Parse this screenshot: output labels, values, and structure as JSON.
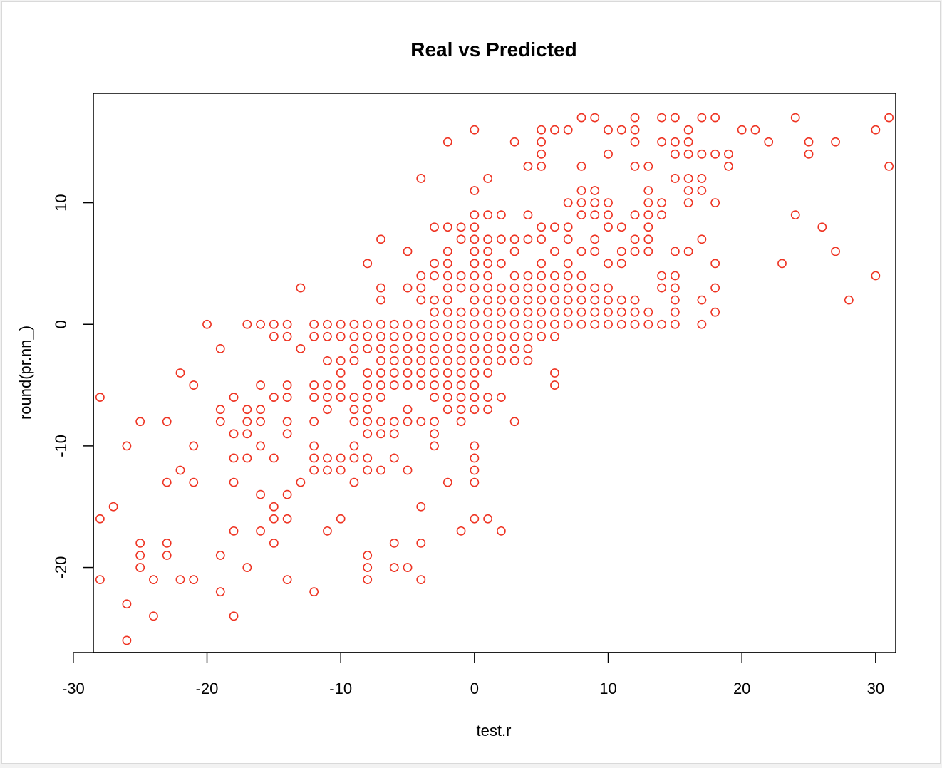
{
  "colors": {
    "point": "#ee3322",
    "axis": "#000000",
    "background": "#ffffff"
  },
  "chart_data": {
    "type": "scatter",
    "title": "Real vs Predicted",
    "xlabel": "test.r",
    "ylabel": "round(pr.nn_)",
    "xlim": [
      -28.5,
      31.5
    ],
    "ylim": [
      -27,
      19
    ],
    "xticks": [
      -30,
      -20,
      -10,
      0,
      10,
      20,
      30
    ],
    "yticks": [
      -20,
      -10,
      0,
      10
    ],
    "x_tick_labels": [
      "-30",
      "-20",
      "-10",
      "0",
      "10",
      "20",
      "30"
    ],
    "y_tick_labels": [
      "-20",
      "-10",
      "0",
      "10"
    ],
    "grid": false,
    "legend": false,
    "marker": "open-circle",
    "points": [
      [
        -28,
        -6
      ],
      [
        -28,
        -16
      ],
      [
        -28,
        -21
      ],
      [
        -27,
        -15
      ],
      [
        -26,
        -10
      ],
      [
        -26,
        -23
      ],
      [
        -26,
        -26
      ],
      [
        -25,
        -8
      ],
      [
        -25,
        -18
      ],
      [
        -25,
        -19
      ],
      [
        -25,
        -20
      ],
      [
        -24,
        -21
      ],
      [
        -24,
        -24
      ],
      [
        -23,
        -8
      ],
      [
        -23,
        -13
      ],
      [
        -23,
        -18
      ],
      [
        -23,
        -19
      ],
      [
        -22,
        -4
      ],
      [
        -22,
        -12
      ],
      [
        -22,
        -21
      ],
      [
        -21,
        -5
      ],
      [
        -21,
        -10
      ],
      [
        -21,
        -13
      ],
      [
        -21,
        -21
      ],
      [
        -20,
        0
      ],
      [
        -19,
        -2
      ],
      [
        -19,
        -7
      ],
      [
        -19,
        -8
      ],
      [
        -19,
        -19
      ],
      [
        -19,
        -22
      ],
      [
        -18,
        -6
      ],
      [
        -18,
        -9
      ],
      [
        -18,
        -11
      ],
      [
        -18,
        -13
      ],
      [
        -18,
        -17
      ],
      [
        -18,
        -24
      ],
      [
        -17,
        0
      ],
      [
        -17,
        -7
      ],
      [
        -17,
        -8
      ],
      [
        -17,
        -9
      ],
      [
        -17,
        -11
      ],
      [
        -17,
        -20
      ],
      [
        -16,
        0
      ],
      [
        -16,
        -5
      ],
      [
        -16,
        -7
      ],
      [
        -16,
        -8
      ],
      [
        -16,
        -10
      ],
      [
        -16,
        -14
      ],
      [
        -16,
        -17
      ],
      [
        -15,
        0
      ],
      [
        -15,
        -1
      ],
      [
        -15,
        -6
      ],
      [
        -15,
        -11
      ],
      [
        -15,
        -15
      ],
      [
        -15,
        -16
      ],
      [
        -15,
        -18
      ],
      [
        -14,
        0
      ],
      [
        -14,
        -1
      ],
      [
        -14,
        -5
      ],
      [
        -14,
        -6
      ],
      [
        -14,
        -8
      ],
      [
        -14,
        -9
      ],
      [
        -14,
        -14
      ],
      [
        -14,
        -16
      ],
      [
        -14,
        -21
      ],
      [
        -13,
        3
      ],
      [
        -13,
        -2
      ],
      [
        -13,
        -13
      ],
      [
        -12,
        0
      ],
      [
        -12,
        -1
      ],
      [
        -12,
        -5
      ],
      [
        -12,
        -6
      ],
      [
        -12,
        -8
      ],
      [
        -12,
        -10
      ],
      [
        -12,
        -11
      ],
      [
        -12,
        -12
      ],
      [
        -12,
        -22
      ],
      [
        -11,
        0
      ],
      [
        -11,
        -1
      ],
      [
        -11,
        -3
      ],
      [
        -11,
        -5
      ],
      [
        -11,
        -6
      ],
      [
        -11,
        -7
      ],
      [
        -11,
        -11
      ],
      [
        -11,
        -12
      ],
      [
        -11,
        -17
      ],
      [
        -10,
        0
      ],
      [
        -10,
        -1
      ],
      [
        -10,
        -3
      ],
      [
        -10,
        -4
      ],
      [
        -10,
        -5
      ],
      [
        -10,
        -6
      ],
      [
        -10,
        -11
      ],
      [
        -10,
        -12
      ],
      [
        -10,
        -16
      ],
      [
        -9,
        0
      ],
      [
        -9,
        -1
      ],
      [
        -9,
        -2
      ],
      [
        -9,
        -3
      ],
      [
        -9,
        -6
      ],
      [
        -9,
        -7
      ],
      [
        -9,
        -8
      ],
      [
        -9,
        -10
      ],
      [
        -9,
        -11
      ],
      [
        -9,
        -13
      ],
      [
        -8,
        5
      ],
      [
        -8,
        0
      ],
      [
        -8,
        -1
      ],
      [
        -8,
        -2
      ],
      [
        -8,
        -4
      ],
      [
        -8,
        -5
      ],
      [
        -8,
        -6
      ],
      [
        -8,
        -7
      ],
      [
        -8,
        -8
      ],
      [
        -8,
        -9
      ],
      [
        -8,
        -11
      ],
      [
        -8,
        -12
      ],
      [
        -8,
        -19
      ],
      [
        -8,
        -20
      ],
      [
        -8,
        -21
      ],
      [
        -7,
        7
      ],
      [
        -7,
        3
      ],
      [
        -7,
        2
      ],
      [
        -7,
        0
      ],
      [
        -7,
        -1
      ],
      [
        -7,
        -2
      ],
      [
        -7,
        -3
      ],
      [
        -7,
        -4
      ],
      [
        -7,
        -5
      ],
      [
        -7,
        -6
      ],
      [
        -7,
        -8
      ],
      [
        -7,
        -9
      ],
      [
        -7,
        -12
      ],
      [
        -6,
        0
      ],
      [
        -6,
        -1
      ],
      [
        -6,
        -2
      ],
      [
        -6,
        -3
      ],
      [
        -6,
        -4
      ],
      [
        -6,
        -5
      ],
      [
        -6,
        -8
      ],
      [
        -6,
        -9
      ],
      [
        -6,
        -11
      ],
      [
        -6,
        -18
      ],
      [
        -6,
        -20
      ],
      [
        -5,
        6
      ],
      [
        -5,
        3
      ],
      [
        -5,
        0
      ],
      [
        -5,
        -1
      ],
      [
        -5,
        -2
      ],
      [
        -5,
        -3
      ],
      [
        -5,
        -4
      ],
      [
        -5,
        -5
      ],
      [
        -5,
        -7
      ],
      [
        -5,
        -8
      ],
      [
        -5,
        -12
      ],
      [
        -5,
        -20
      ],
      [
        -4,
        12
      ],
      [
        -4,
        4
      ],
      [
        -4,
        3
      ],
      [
        -4,
        2
      ],
      [
        -4,
        0
      ],
      [
        -4,
        -1
      ],
      [
        -4,
        -2
      ],
      [
        -4,
        -3
      ],
      [
        -4,
        -4
      ],
      [
        -4,
        -5
      ],
      [
        -4,
        -8
      ],
      [
        -4,
        -15
      ],
      [
        -4,
        -18
      ],
      [
        -4,
        -21
      ],
      [
        -3,
        8
      ],
      [
        -3,
        5
      ],
      [
        -3,
        4
      ],
      [
        -3,
        2
      ],
      [
        -3,
        1
      ],
      [
        -3,
        0
      ],
      [
        -3,
        -1
      ],
      [
        -3,
        -2
      ],
      [
        -3,
        -3
      ],
      [
        -3,
        -4
      ],
      [
        -3,
        -5
      ],
      [
        -3,
        -6
      ],
      [
        -3,
        -8
      ],
      [
        -3,
        -9
      ],
      [
        -3,
        -10
      ],
      [
        -2,
        15
      ],
      [
        -2,
        8
      ],
      [
        -2,
        6
      ],
      [
        -2,
        5
      ],
      [
        -2,
        4
      ],
      [
        -2,
        3
      ],
      [
        -2,
        2
      ],
      [
        -2,
        1
      ],
      [
        -2,
        0
      ],
      [
        -2,
        -1
      ],
      [
        -2,
        -2
      ],
      [
        -2,
        -3
      ],
      [
        -2,
        -4
      ],
      [
        -2,
        -5
      ],
      [
        -2,
        -6
      ],
      [
        -2,
        -7
      ],
      [
        -2,
        -13
      ],
      [
        -1,
        8
      ],
      [
        -1,
        7
      ],
      [
        -1,
        4
      ],
      [
        -1,
        3
      ],
      [
        -1,
        1
      ],
      [
        -1,
        0
      ],
      [
        -1,
        -1
      ],
      [
        -1,
        -2
      ],
      [
        -1,
        -3
      ],
      [
        -1,
        -4
      ],
      [
        -1,
        -5
      ],
      [
        -1,
        -6
      ],
      [
        -1,
        -7
      ],
      [
        -1,
        -8
      ],
      [
        -1,
        -17
      ],
      [
        0,
        16
      ],
      [
        0,
        11
      ],
      [
        0,
        9
      ],
      [
        0,
        8
      ],
      [
        0,
        7
      ],
      [
        0,
        6
      ],
      [
        0,
        5
      ],
      [
        0,
        4
      ],
      [
        0,
        3
      ],
      [
        0,
        2
      ],
      [
        0,
        1
      ],
      [
        0,
        0
      ],
      [
        0,
        -1
      ],
      [
        0,
        -2
      ],
      [
        0,
        -3
      ],
      [
        0,
        -4
      ],
      [
        0,
        -5
      ],
      [
        0,
        -6
      ],
      [
        0,
        -7
      ],
      [
        0,
        -10
      ],
      [
        0,
        -11
      ],
      [
        0,
        -12
      ],
      [
        0,
        -13
      ],
      [
        0,
        -16
      ],
      [
        1,
        12
      ],
      [
        1,
        9
      ],
      [
        1,
        7
      ],
      [
        1,
        6
      ],
      [
        1,
        5
      ],
      [
        1,
        4
      ],
      [
        1,
        3
      ],
      [
        1,
        2
      ],
      [
        1,
        1
      ],
      [
        1,
        0
      ],
      [
        1,
        -1
      ],
      [
        1,
        -2
      ],
      [
        1,
        -3
      ],
      [
        1,
        -4
      ],
      [
        1,
        -6
      ],
      [
        1,
        -7
      ],
      [
        1,
        -16
      ],
      [
        2,
        9
      ],
      [
        2,
        7
      ],
      [
        2,
        5
      ],
      [
        2,
        3
      ],
      [
        2,
        2
      ],
      [
        2,
        1
      ],
      [
        2,
        0
      ],
      [
        2,
        -1
      ],
      [
        2,
        -2
      ],
      [
        2,
        -3
      ],
      [
        2,
        -6
      ],
      [
        2,
        -17
      ],
      [
        3,
        15
      ],
      [
        3,
        7
      ],
      [
        3,
        6
      ],
      [
        3,
        4
      ],
      [
        3,
        3
      ],
      [
        3,
        2
      ],
      [
        3,
        1
      ],
      [
        3,
        0
      ],
      [
        3,
        -1
      ],
      [
        3,
        -2
      ],
      [
        3,
        -3
      ],
      [
        3,
        -8
      ],
      [
        4,
        13
      ],
      [
        4,
        9
      ],
      [
        4,
        7
      ],
      [
        4,
        4
      ],
      [
        4,
        3
      ],
      [
        4,
        2
      ],
      [
        4,
        1
      ],
      [
        4,
        0
      ],
      [
        4,
        -1
      ],
      [
        4,
        -2
      ],
      [
        4,
        -3
      ],
      [
        5,
        16
      ],
      [
        5,
        15
      ],
      [
        5,
        14
      ],
      [
        5,
        13
      ],
      [
        5,
        8
      ],
      [
        5,
        7
      ],
      [
        5,
        5
      ],
      [
        5,
        4
      ],
      [
        5,
        3
      ],
      [
        5,
        2
      ],
      [
        5,
        1
      ],
      [
        5,
        0
      ],
      [
        5,
        -1
      ],
      [
        6,
        16
      ],
      [
        6,
        8
      ],
      [
        6,
        6
      ],
      [
        6,
        4
      ],
      [
        6,
        3
      ],
      [
        6,
        2
      ],
      [
        6,
        1
      ],
      [
        6,
        0
      ],
      [
        6,
        -1
      ],
      [
        6,
        -4
      ],
      [
        6,
        -5
      ],
      [
        7,
        16
      ],
      [
        7,
        10
      ],
      [
        7,
        8
      ],
      [
        7,
        7
      ],
      [
        7,
        5
      ],
      [
        7,
        4
      ],
      [
        7,
        3
      ],
      [
        7,
        2
      ],
      [
        7,
        1
      ],
      [
        7,
        0
      ],
      [
        8,
        17
      ],
      [
        8,
        13
      ],
      [
        8,
        11
      ],
      [
        8,
        10
      ],
      [
        8,
        9
      ],
      [
        8,
        6
      ],
      [
        8,
        4
      ],
      [
        8,
        3
      ],
      [
        8,
        2
      ],
      [
        8,
        1
      ],
      [
        8,
        0
      ],
      [
        9,
        17
      ],
      [
        9,
        11
      ],
      [
        9,
        10
      ],
      [
        9,
        9
      ],
      [
        9,
        7
      ],
      [
        9,
        6
      ],
      [
        9,
        3
      ],
      [
        9,
        2
      ],
      [
        9,
        1
      ],
      [
        9,
        0
      ],
      [
        10,
        16
      ],
      [
        10,
        14
      ],
      [
        10,
        10
      ],
      [
        10,
        9
      ],
      [
        10,
        8
      ],
      [
        10,
        5
      ],
      [
        10,
        3
      ],
      [
        10,
        2
      ],
      [
        10,
        1
      ],
      [
        10,
        0
      ],
      [
        11,
        16
      ],
      [
        11,
        8
      ],
      [
        11,
        6
      ],
      [
        11,
        5
      ],
      [
        11,
        2
      ],
      [
        11,
        1
      ],
      [
        11,
        0
      ],
      [
        12,
        17
      ],
      [
        12,
        16
      ],
      [
        12,
        15
      ],
      [
        12,
        13
      ],
      [
        12,
        9
      ],
      [
        12,
        7
      ],
      [
        12,
        6
      ],
      [
        12,
        2
      ],
      [
        12,
        1
      ],
      [
        12,
        0
      ],
      [
        13,
        13
      ],
      [
        13,
        11
      ],
      [
        13,
        10
      ],
      [
        13,
        9
      ],
      [
        13,
        8
      ],
      [
        13,
        7
      ],
      [
        13,
        6
      ],
      [
        13,
        1
      ],
      [
        13,
        0
      ],
      [
        14,
        17
      ],
      [
        14,
        15
      ],
      [
        14,
        10
      ],
      [
        14,
        9
      ],
      [
        14,
        4
      ],
      [
        14,
        3
      ],
      [
        14,
        0
      ],
      [
        15,
        17
      ],
      [
        15,
        15
      ],
      [
        15,
        14
      ],
      [
        15,
        12
      ],
      [
        15,
        6
      ],
      [
        15,
        4
      ],
      [
        15,
        3
      ],
      [
        15,
        2
      ],
      [
        15,
        1
      ],
      [
        15,
        0
      ],
      [
        16,
        16
      ],
      [
        16,
        15
      ],
      [
        16,
        14
      ],
      [
        16,
        12
      ],
      [
        16,
        11
      ],
      [
        16,
        10
      ],
      [
        16,
        6
      ],
      [
        17,
        17
      ],
      [
        17,
        14
      ],
      [
        17,
        12
      ],
      [
        17,
        11
      ],
      [
        17,
        7
      ],
      [
        17,
        2
      ],
      [
        17,
        0
      ],
      [
        18,
        17
      ],
      [
        18,
        14
      ],
      [
        18,
        10
      ],
      [
        18,
        5
      ],
      [
        18,
        3
      ],
      [
        18,
        1
      ],
      [
        19,
        14
      ],
      [
        19,
        13
      ],
      [
        20,
        16
      ],
      [
        21,
        16
      ],
      [
        22,
        15
      ],
      [
        23,
        5
      ],
      [
        24,
        17
      ],
      [
        24,
        9
      ],
      [
        25,
        15
      ],
      [
        25,
        14
      ],
      [
        26,
        8
      ],
      [
        27,
        15
      ],
      [
        27,
        6
      ],
      [
        28,
        2
      ],
      [
        30,
        16
      ],
      [
        30,
        4
      ],
      [
        31,
        17
      ],
      [
        31,
        13
      ]
    ]
  }
}
